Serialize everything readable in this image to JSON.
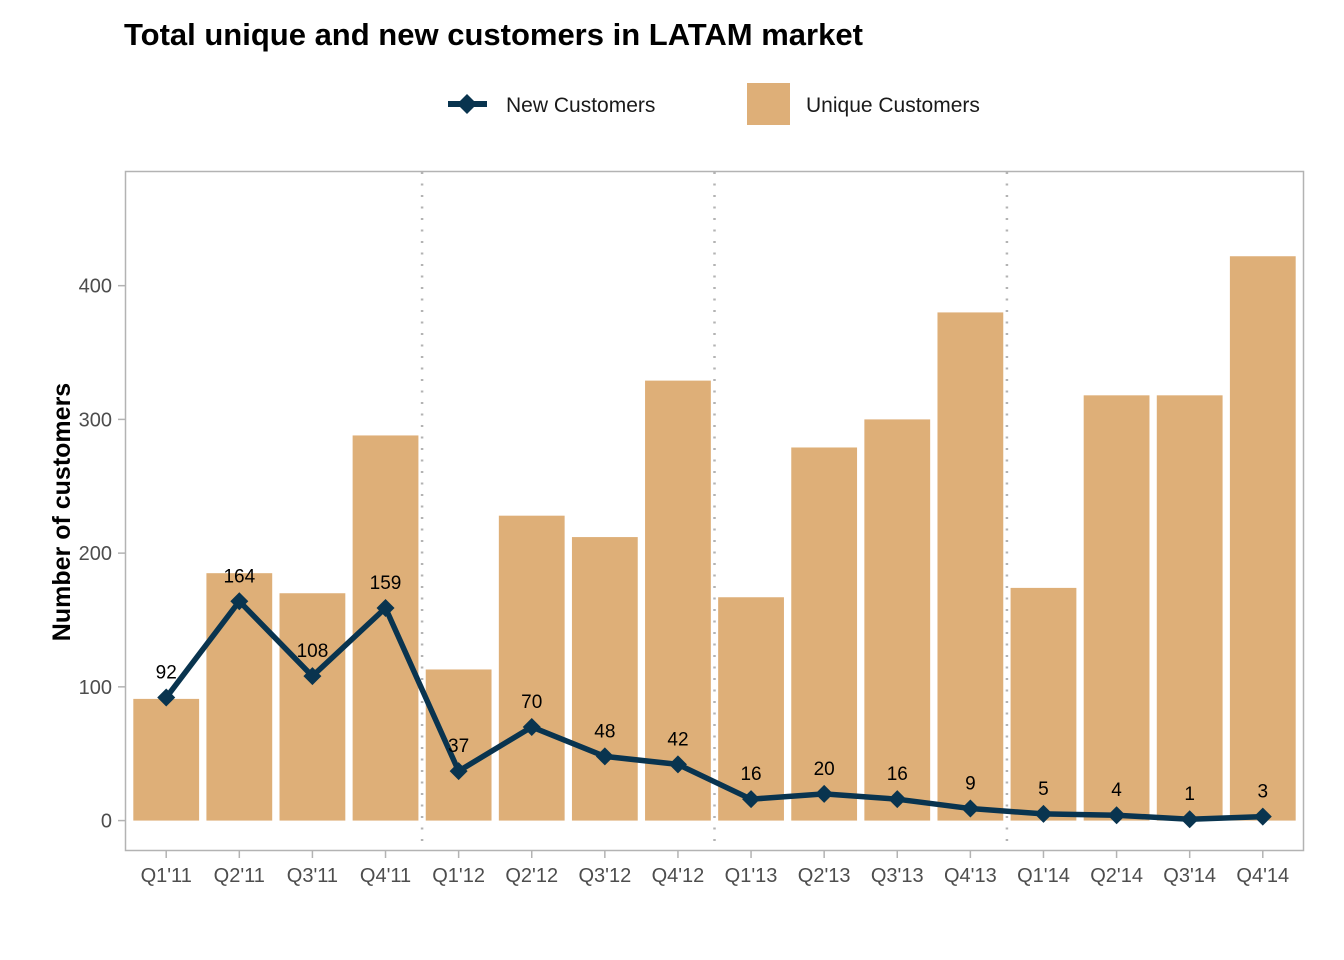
{
  "chart_data": {
    "type": "bar",
    "title": "Total unique and new customers in LATAM market",
    "xlabel": "",
    "ylabel": "Number of customers",
    "categories": [
      "Q1'11",
      "Q2'11",
      "Q3'11",
      "Q4'11",
      "Q1'12",
      "Q2'12",
      "Q3'12",
      "Q4'12",
      "Q1'13",
      "Q2'13",
      "Q3'13",
      "Q4'13",
      "Q1'14",
      "Q2'14",
      "Q3'14",
      "Q4'14"
    ],
    "series": [
      {
        "name": "Unique Customers",
        "type": "bar",
        "color": "#DEAF78",
        "values": [
          91,
          185,
          170,
          288,
          113,
          228,
          212,
          329,
          167,
          279,
          300,
          380,
          174,
          318,
          318,
          422
        ]
      },
      {
        "name": "New Customers",
        "type": "line",
        "marker": "diamond",
        "color": "#09344F",
        "values": [
          92,
          164,
          108,
          159,
          37,
          70,
          48,
          42,
          16,
          20,
          16,
          9,
          5,
          4,
          1,
          3
        ],
        "data_labels": [
          "92",
          "164",
          "108",
          "159",
          "37",
          "70",
          "48",
          "42",
          "16",
          "20",
          "16",
          "9",
          "5",
          "4",
          "1",
          "3"
        ]
      }
    ],
    "ylim": [
      -22,
      485
    ],
    "yticks": [
      0,
      100,
      200,
      300,
      400
    ],
    "ytick_labels": [
      "0",
      "100",
      "200",
      "300",
      "400"
    ],
    "year_separators_after": [
      "Q4'11",
      "Q4'12",
      "Q4'13"
    ],
    "grid": false,
    "legend": {
      "position": "top",
      "entries": [
        "New Customers",
        "Unique Customers"
      ]
    }
  }
}
